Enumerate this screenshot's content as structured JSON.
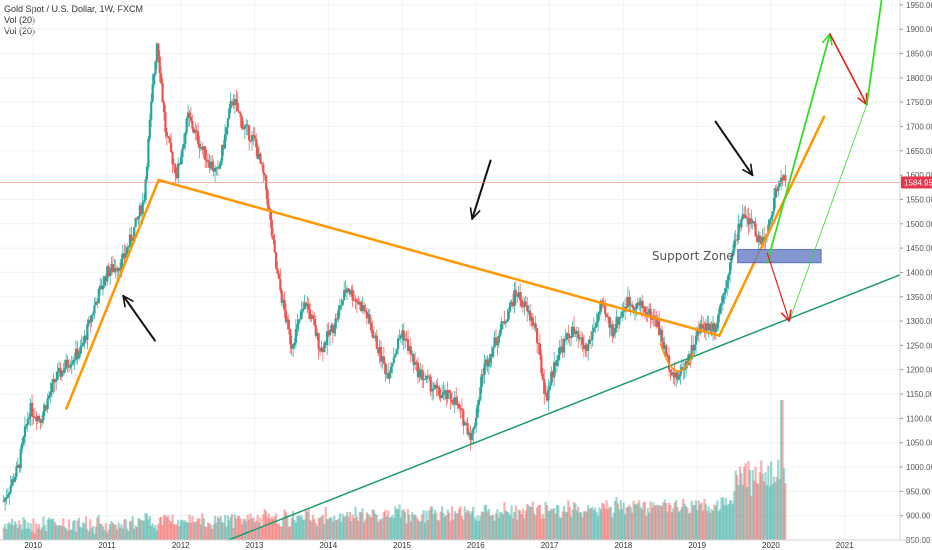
{
  "legend": {
    "symbol": "Gold Spot / U.S. Dollar, 1W, FXCM",
    "vol1": "Vol (20)",
    "vol2": "Vol (20)"
  },
  "current_price": "1584.95",
  "colors": {
    "up": "#26a69a",
    "down": "#ef5350",
    "orange": "#ff9800",
    "green_line": "#1e9b6e",
    "bright_green": "#33dd22",
    "red_arrow": "#e0201b",
    "zone_fill": "#6f86c9",
    "price_line": "#f28b8b"
  },
  "annotations": {
    "support_zone": "Support Zone"
  },
  "chart_data": {
    "type": "candlestick",
    "title": "Gold Spot / U.S. Dollar, 1W, FXCM",
    "x_ticks": [
      "2010",
      "2011",
      "2012",
      "2013",
      "2014",
      "2015",
      "2016",
      "2017",
      "2018",
      "2019",
      "2020",
      "2021"
    ],
    "y_ticks": [
      "850.00",
      "900.00",
      "950.00",
      "1000.00",
      "1050.00",
      "1100.00",
      "1150.00",
      "1200.00",
      "1250.00",
      "1300.00",
      "1350.00",
      "1400.00",
      "1450.00",
      "1500.00",
      "1550.00",
      "1600.00",
      "1650.00",
      "1700.00",
      "1750.00",
      "1800.00",
      "1850.00",
      "1900.00",
      "1950.00"
    ],
    "ylim": [
      850,
      1960
    ],
    "xlim": [
      2009.55,
      2021.75
    ],
    "price_path": [
      [
        2009.6,
        930
      ],
      [
        2009.8,
        1000
      ],
      [
        2009.95,
        1120
      ],
      [
        2010.1,
        1100
      ],
      [
        2010.3,
        1180
      ],
      [
        2010.5,
        1220
      ],
      [
        2010.65,
        1240
      ],
      [
        2010.85,
        1340
      ],
      [
        2011.0,
        1400
      ],
      [
        2011.2,
        1420
      ],
      [
        2011.35,
        1480
      ],
      [
        2011.5,
        1550
      ],
      [
        2011.62,
        1780
      ],
      [
        2011.68,
        1880
      ],
      [
        2011.8,
        1680
      ],
      [
        2011.95,
        1600
      ],
      [
        2012.1,
        1720
      ],
      [
        2012.3,
        1650
      ],
      [
        2012.5,
        1600
      ],
      [
        2012.7,
        1760
      ],
      [
        2012.85,
        1700
      ],
      [
        2013.0,
        1670
      ],
      [
        2013.15,
        1580
      ],
      [
        2013.3,
        1400
      ],
      [
        2013.5,
        1250
      ],
      [
        2013.7,
        1340
      ],
      [
        2013.9,
        1240
      ],
      [
        2014.1,
        1300
      ],
      [
        2014.25,
        1370
      ],
      [
        2014.5,
        1320
      ],
      [
        2014.8,
        1190
      ],
      [
        2015.0,
        1280
      ],
      [
        2015.2,
        1200
      ],
      [
        2015.5,
        1150
      ],
      [
        2015.7,
        1140
      ],
      [
        2015.95,
        1060
      ],
      [
        2016.1,
        1200
      ],
      [
        2016.3,
        1270
      ],
      [
        2016.55,
        1360
      ],
      [
        2016.8,
        1290
      ],
      [
        2016.95,
        1140
      ],
      [
        2017.1,
        1230
      ],
      [
        2017.3,
        1280
      ],
      [
        2017.5,
        1240
      ],
      [
        2017.7,
        1330
      ],
      [
        2017.85,
        1280
      ],
      [
        2018.05,
        1340
      ],
      [
        2018.25,
        1330
      ],
      [
        2018.45,
        1300
      ],
      [
        2018.6,
        1220
      ],
      [
        2018.72,
        1180
      ],
      [
        2018.9,
        1230
      ],
      [
        2019.05,
        1290
      ],
      [
        2019.25,
        1290
      ],
      [
        2019.45,
        1420
      ],
      [
        2019.6,
        1510
      ],
      [
        2019.75,
        1500
      ],
      [
        2019.85,
        1460
      ],
      [
        2019.95,
        1480
      ],
      [
        2020.05,
        1560
      ],
      [
        2020.15,
        1600
      ],
      [
        2020.2,
        1585
      ]
    ],
    "volume_peak_note": "spike early 2020",
    "drawings": {
      "orange_rising_left": [
        [
          2010.45,
          1120
        ],
        [
          2011.7,
          1590
        ]
      ],
      "orange_descending": [
        [
          2011.7,
          1590
        ],
        [
          2019.3,
          1270
        ]
      ],
      "orange_rising_right": [
        [
          2019.3,
          1270
        ],
        [
          2020.72,
          1720
        ]
      ],
      "green_support": [
        [
          2012.65,
          850
        ],
        [
          2021.75,
          1395
        ]
      ],
      "support_zone": {
        "x0": 2019.55,
        "x1": 2020.68,
        "y0": 1420,
        "y1": 1447
      },
      "green_arrow_1": [
        [
          2019.95,
          1420
        ],
        [
          2020.8,
          1890
        ]
      ],
      "red_arrow_1": [
        [
          2020.8,
          1890
        ],
        [
          2021.3,
          1745
        ]
      ],
      "green_arrow_2": [
        [
          2021.3,
          1745
        ],
        [
          2021.5,
          1960
        ]
      ],
      "red_arrow_2": [
        [
          2019.95,
          1440
        ],
        [
          2020.25,
          1300
        ]
      ],
      "thin_green": [
        [
          2020.25,
          1300
        ],
        [
          2021.3,
          1745
        ]
      ]
    }
  }
}
